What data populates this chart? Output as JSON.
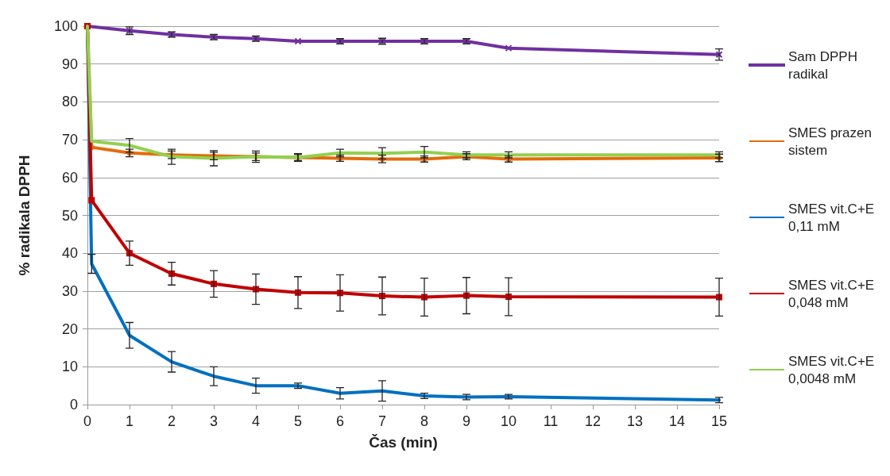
{
  "chart_data": {
    "type": "line",
    "xlabel": "Čas (min)",
    "ylabel": "% radikala DPPH",
    "xlim": [
      0,
      15
    ],
    "xticks": [
      0,
      1,
      2,
      3,
      4,
      5,
      6,
      7,
      8,
      9,
      10,
      11,
      12,
      13,
      14,
      15
    ],
    "ylim": [
      0,
      100
    ],
    "yticks": [
      0,
      10,
      20,
      30,
      40,
      50,
      60,
      70,
      80,
      90,
      100
    ],
    "grid": "y",
    "legend": "right",
    "line_style": "solid",
    "series": [
      {
        "name": "Sam DPPH radikal",
        "color": "#7030a0",
        "marker": "cross",
        "x": [
          0,
          1,
          2,
          3,
          4,
          5,
          6,
          7,
          8,
          9,
          10,
          15
        ],
        "values": [
          100,
          98.8,
          97.8,
          97.1,
          96.7,
          96,
          96,
          96,
          96,
          96,
          94.2,
          92.5
        ],
        "errors": [
          null,
          1,
          0.7,
          0.7,
          0.7,
          null,
          0.7,
          0.8,
          0.7,
          0.7,
          null,
          1.5
        ]
      },
      {
        "name": "SMES prazen sistem",
        "color": "#e36c0a",
        "marker": "circle",
        "x": [
          0,
          0.1,
          1,
          2,
          3,
          4,
          5,
          6,
          7,
          8,
          9,
          10,
          15
        ],
        "values": [
          100,
          68,
          66.5,
          66,
          65.7,
          65.5,
          65.3,
          65.1,
          64.9,
          64.9,
          65.5,
          64.9,
          65.2
        ],
        "errors": [
          null,
          null,
          1,
          1,
          1,
          1,
          0.8,
          0.8,
          1,
          0.8,
          0.8,
          0.8,
          1
        ]
      },
      {
        "name": "SMES vit.C+E 0,11 mM",
        "color": "#0070c0",
        "x": [
          0,
          0.1,
          1,
          2,
          3,
          4,
          5,
          6,
          7,
          8,
          9,
          10,
          15
        ],
        "values": [
          100,
          37.2,
          18.3,
          11.3,
          7.5,
          5,
          5,
          3,
          3.6,
          2.3,
          2,
          2.1,
          1.2
        ],
        "errors": [
          null,
          2.5,
          3.4,
          2.7,
          2.5,
          2,
          0.7,
          1.5,
          2.7,
          0.7,
          0.7,
          0.6,
          0.7
        ]
      },
      {
        "name": "SMES vit.C+E 0,048 mM",
        "color": "#c00000",
        "marker": "square",
        "x": [
          0,
          0.1,
          1,
          2,
          3,
          4,
          5,
          6,
          7,
          8,
          9,
          10,
          15
        ],
        "values": [
          100,
          54,
          40,
          34.6,
          31.9,
          30.5,
          29.6,
          29.5,
          28.7,
          28.4,
          28.8,
          28.5,
          28.4
        ],
        "errors": [
          null,
          null,
          3.2,
          3,
          3.5,
          4,
          4.2,
          4.8,
          5,
          5,
          4.8,
          5,
          5
        ]
      },
      {
        "name": "SMES vit.C+E 0,0048 mM",
        "color": "#92d050",
        "x": [
          0,
          0.1,
          1,
          2,
          3,
          4,
          5,
          6,
          7,
          8,
          9,
          10,
          15
        ],
        "values": [
          100,
          69.6,
          68.5,
          65.5,
          65.1,
          65.5,
          65.3,
          66.5,
          66.4,
          66.7,
          66,
          66,
          66
        ],
        "errors": [
          null,
          null,
          1.8,
          2,
          2,
          1.5,
          1,
          1,
          1.5,
          1.5,
          0.8,
          0.8,
          0.8
        ]
      }
    ]
  }
}
